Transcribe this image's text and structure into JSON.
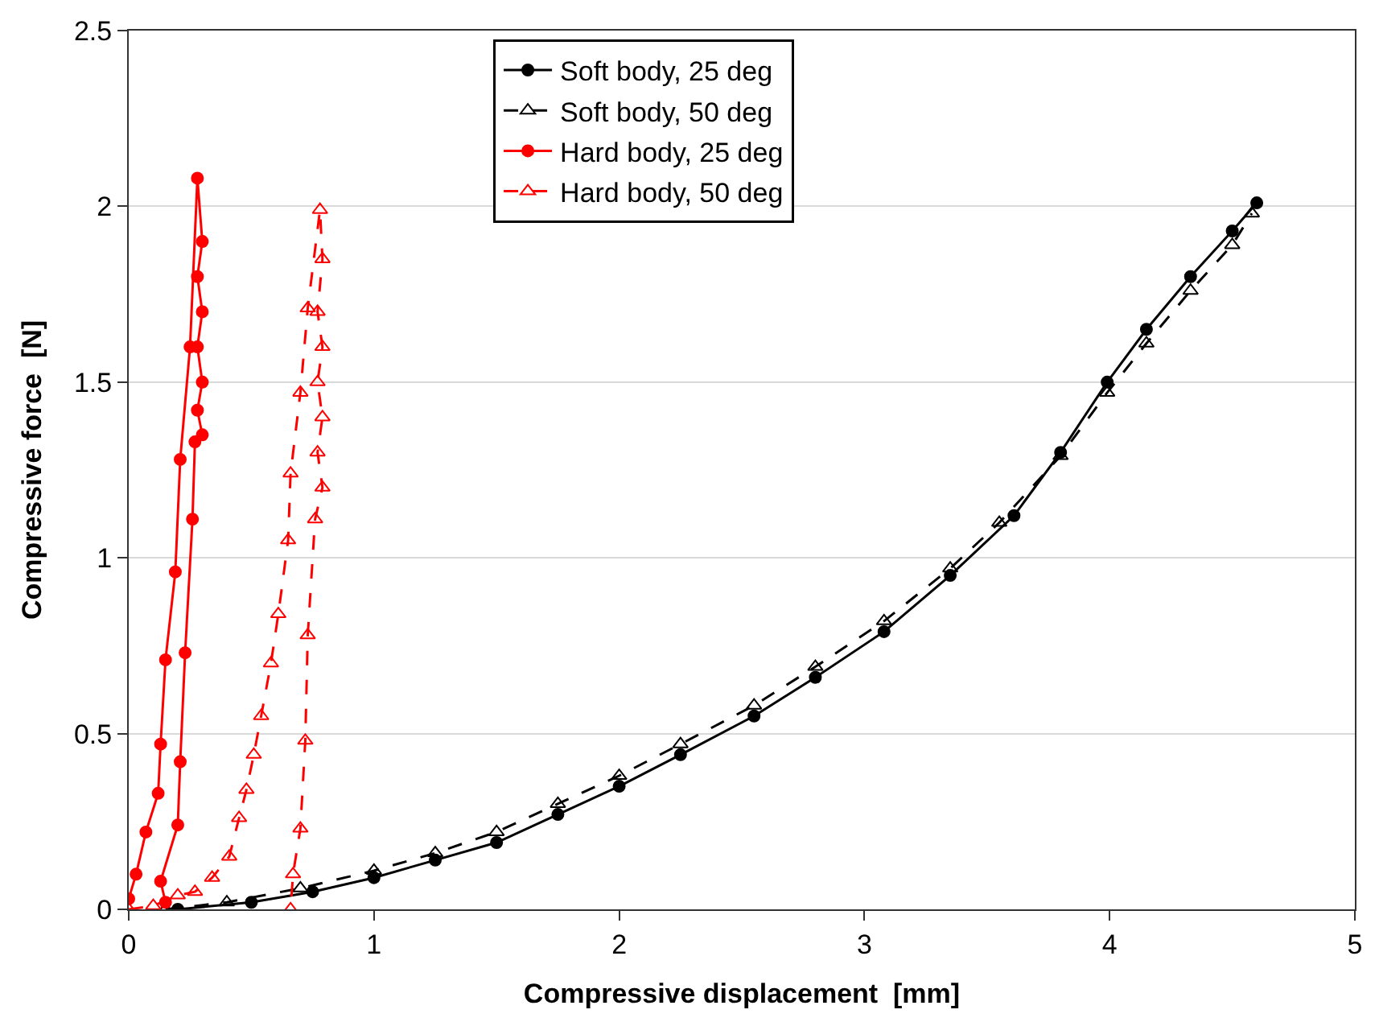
{
  "chart_data": {
    "type": "line",
    "xlabel": "Compressive displacement  [mm]",
    "ylabel": "Compressive force  [N]",
    "xlim": [
      0,
      5
    ],
    "xticks": [
      0,
      1,
      2,
      3,
      4,
      5
    ],
    "ylim": [
      0,
      2.5
    ],
    "yticks": [
      0,
      0.5,
      1,
      1.5,
      2,
      2.5
    ],
    "grid": "y",
    "legend": "top",
    "series": [
      {
        "name": "Soft body, 25 deg",
        "color": "#000000",
        "marker": "circle",
        "line_style": "solid",
        "x": [
          0.2,
          0.5,
          0.75,
          1,
          1.25,
          1.5,
          1.75,
          2,
          2.25,
          2.55,
          2.8,
          3.08,
          3.35,
          3.61,
          3.8,
          3.99,
          4.15,
          4.33,
          4.5,
          4.6
        ],
        "values": [
          0,
          0.02,
          0.05,
          0.09,
          0.14,
          0.19,
          0.27,
          0.35,
          0.44,
          0.55,
          0.66,
          0.79,
          0.95,
          1.12,
          1.3,
          1.5,
          1.65,
          1.8,
          1.93,
          2.01
        ]
      },
      {
        "name": "Soft body, 50 deg",
        "color": "#000000",
        "marker": "triangle",
        "line_style": "dashed",
        "x": [
          0.15,
          0.4,
          0.7,
          1,
          1.25,
          1.5,
          1.75,
          2,
          2.25,
          2.55,
          2.8,
          3.08,
          3.35,
          3.55,
          3.8,
          3.99,
          4.15,
          4.33,
          4.5,
          4.58
        ],
        "values": [
          0,
          0.02,
          0.06,
          0.11,
          0.16,
          0.22,
          0.3,
          0.38,
          0.47,
          0.58,
          0.69,
          0.82,
          0.97,
          1.1,
          1.29,
          1.47,
          1.61,
          1.76,
          1.89,
          1.98
        ]
      },
      {
        "name": "Hard body, 25 deg",
        "color": "#ff0000",
        "marker": "circle",
        "line_style": "solid",
        "x": [
          0,
          0.03,
          0.07,
          0.12,
          0.13,
          0.15,
          0.19,
          0.21,
          0.25,
          0.28,
          0.3,
          0.28,
          0.3,
          0.28,
          0.3,
          0.28,
          0.3,
          0.27,
          0.26,
          0.23,
          0.21,
          0.2,
          0.13,
          0.15
        ],
        "values": [
          0.03,
          0.1,
          0.22,
          0.33,
          0.47,
          0.71,
          0.96,
          1.28,
          1.6,
          2.08,
          1.9,
          1.8,
          1.7,
          1.6,
          1.5,
          1.42,
          1.35,
          1.33,
          1.11,
          0.73,
          0.42,
          0.24,
          0.08,
          0.02
        ]
      },
      {
        "name": "Hard body, 50 deg",
        "color": "#ff0000",
        "marker": "triangle",
        "line_style": "dashed",
        "x": [
          0,
          0.1,
          0.2,
          0.27,
          0.34,
          0.41,
          0.45,
          0.48,
          0.51,
          0.54,
          0.58,
          0.61,
          0.65,
          0.66,
          0.7,
          0.73,
          0.78,
          0.79,
          0.77,
          0.79,
          0.77,
          0.79,
          0.77,
          0.79,
          0.76,
          0.73,
          0.72,
          0.7,
          0.67,
          0.66
        ],
        "values": [
          0,
          0.01,
          0.04,
          0.05,
          0.09,
          0.15,
          0.26,
          0.34,
          0.44,
          0.55,
          0.7,
          0.84,
          1.05,
          1.24,
          1.47,
          1.71,
          1.99,
          1.85,
          1.7,
          1.6,
          1.5,
          1.4,
          1.3,
          1.2,
          1.11,
          0.78,
          0.48,
          0.23,
          0.1,
          0
        ]
      }
    ]
  }
}
